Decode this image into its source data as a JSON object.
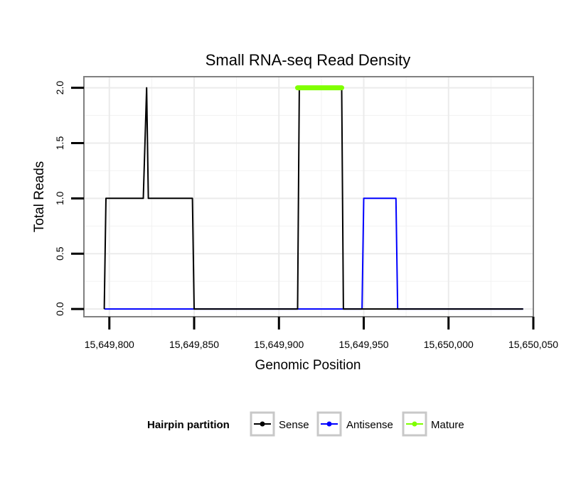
{
  "chart_data": {
    "type": "line",
    "title": "Small RNA-seq Read Density",
    "xlabel": "Genomic Position",
    "ylabel": "Total Reads",
    "xlim": [
      15649785,
      15650050
    ],
    "ylim": [
      -0.07,
      2.1
    ],
    "x_ticks": [
      15649800,
      15649850,
      15649900,
      15649950,
      15650000,
      15650050
    ],
    "x_tick_labels": [
      "15,649,800",
      "15,649,850",
      "15,649,900",
      "15,649,950",
      "15,650,000",
      "15,650,050"
    ],
    "y_ticks": [
      0,
      0.5,
      1,
      1.5,
      2
    ],
    "y_tick_labels": [
      "0.0",
      "0.5",
      "1.0",
      "1.5",
      "2.0"
    ],
    "grid": true,
    "legend": {
      "title": "Hairpin partition",
      "position": "bottom",
      "entries": [
        {
          "label": "Sense",
          "color": "#000000"
        },
        {
          "label": "Antisense",
          "color": "#0000ff"
        },
        {
          "label": "Mature",
          "color": "#7fff00"
        }
      ]
    },
    "series": [
      {
        "name": "Sense",
        "color": "#000000",
        "x": [
          15649797,
          15649798,
          15649820,
          15649822,
          15649823,
          15649849,
          15649850,
          15649911,
          15649912,
          15649937,
          15649938,
          15650044
        ],
        "y": [
          0,
          1,
          1,
          2,
          1,
          1,
          0,
          0,
          2,
          2,
          0,
          0
        ]
      },
      {
        "name": "Antisense",
        "color": "#0000ff",
        "x": [
          15649797,
          15649949,
          15649950,
          15649969,
          15649970,
          15650044
        ],
        "y": [
          0,
          0,
          1,
          1,
          0,
          0
        ]
      },
      {
        "name": "Mature",
        "color": "#7fff00",
        "x": [
          15649911,
          15649937
        ],
        "y": [
          2,
          2
        ]
      }
    ]
  }
}
